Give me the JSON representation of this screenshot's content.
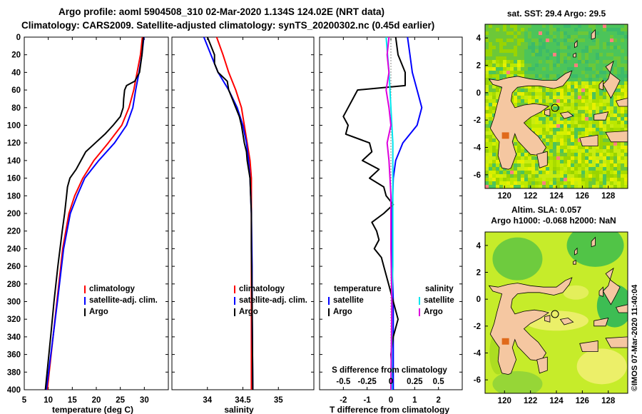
{
  "header": {
    "line1": "Argo profile: aoml 5904508_310 02-Mar-2020 1.134S 124.02E (NRT data)",
    "line2": "Climatology: CARS2009. Satellite-adjusted climatology: synTS_20200302.nc (0.45d earlier)"
  },
  "colors": {
    "climatology": "#ff0000",
    "satellite": "#0000ff",
    "argo": "#000000",
    "sal_satellite": "#00e5ee",
    "sal_argo": "#dd00dd",
    "land": "#f5c7a1"
  },
  "chart_data": [
    {
      "type": "line",
      "name": "temperature",
      "xlabel": "temperature (deg C)",
      "xlim": [
        5,
        35
      ],
      "ylim": [
        400,
        0
      ],
      "xticks": [
        "5",
        "10",
        "15",
        "20",
        "25",
        "30"
      ],
      "yticks": [
        "0",
        "20",
        "40",
        "60",
        "80",
        "100",
        "120",
        "140",
        "160",
        "180",
        "200",
        "220",
        "240",
        "260",
        "280",
        "300",
        "320",
        "340",
        "360",
        "380",
        "400"
      ],
      "legend": [
        "climatology",
        "satellite-adj. clim.",
        "Argo"
      ],
      "series": [
        {
          "name": "climatology",
          "depth": [
            0,
            20,
            40,
            60,
            80,
            100,
            120,
            140,
            160,
            180,
            200,
            240,
            300,
            340,
            400
          ],
          "values": [
            29.6,
            29.2,
            28.5,
            27.8,
            26.8,
            25.3,
            22.5,
            19.5,
            17.2,
            15.5,
            14.3,
            13,
            11.8,
            11,
            9.8
          ]
        },
        {
          "name": "satellite-adj. clim.",
          "depth": [
            0,
            20,
            40,
            60,
            80,
            100,
            120,
            140,
            160,
            180,
            200,
            240,
            300,
            340,
            400
          ],
          "values": [
            29.9,
            29.5,
            28.9,
            28.2,
            27.6,
            26.3,
            23.8,
            20.5,
            17.6,
            16,
            14.6,
            13.2,
            11.9,
            11,
            9.6
          ]
        },
        {
          "name": "Argo",
          "depth": [
            0,
            20,
            40,
            50,
            55,
            60,
            70,
            80,
            90,
            100,
            110,
            120,
            130,
            140,
            150,
            160,
            170,
            180,
            200,
            220,
            260,
            300,
            340,
            400
          ],
          "values": [
            29.8,
            29.5,
            29.0,
            28.0,
            26.3,
            25.9,
            25.7,
            25.6,
            25,
            23.5,
            21.8,
            19.8,
            17.8,
            16.8,
            15.8,
            14.5,
            14.0,
            13.8,
            13.4,
            12.9,
            12.0,
            11.2,
            10.5,
            9.4
          ]
        }
      ]
    },
    {
      "type": "line",
      "name": "salinity",
      "xlabel": "salinity",
      "xlim": [
        33.5,
        35.5
      ],
      "ylim": [
        400,
        0
      ],
      "xticks": [
        "34",
        "34.5",
        "35"
      ],
      "legend": [
        "climatology",
        "satellite-adj. clim.",
        "Argo"
      ],
      "series": [
        {
          "name": "climatology",
          "depth": [
            0,
            20,
            40,
            60,
            80,
            100,
            120,
            140,
            160,
            200,
            260,
            300,
            400
          ],
          "values": [
            34.13,
            34.22,
            34.3,
            34.4,
            34.48,
            34.52,
            34.56,
            34.6,
            34.62,
            34.62,
            34.62,
            34.62,
            34.62
          ]
        },
        {
          "name": "satellite-adj. clim.",
          "depth": [
            0,
            20,
            40,
            60,
            80,
            100,
            120,
            140,
            160,
            200,
            260,
            300,
            400
          ],
          "values": [
            33.95,
            34.05,
            34.15,
            34.3,
            34.42,
            34.5,
            34.55,
            34.58,
            34.6,
            34.62,
            34.63,
            34.63,
            34.64
          ]
        },
        {
          "name": "Argo",
          "depth": [
            0,
            10,
            20,
            30,
            40,
            50,
            60,
            70,
            80,
            90,
            100,
            110,
            120,
            130,
            140,
            150,
            160,
            180,
            200,
            240,
            300,
            400
          ],
          "values": [
            34.0,
            34.05,
            34.1,
            34.1,
            34.15,
            34.28,
            34.3,
            34.35,
            34.4,
            34.45,
            34.48,
            34.5,
            34.52,
            34.55,
            34.56,
            34.58,
            34.6,
            34.61,
            34.62,
            34.62,
            34.63,
            34.64
          ]
        }
      ]
    },
    {
      "type": "line",
      "name": "difference",
      "xlabel": "T difference from climatology",
      "xlim_T": [
        -3,
        3
      ],
      "ylim": [
        400,
        0
      ],
      "xticks_T": [
        "-2",
        "-1",
        "0",
        "1",
        "2"
      ],
      "s_axis_title": "S difference from climatology",
      "xticks_S": [
        "-0.5",
        "-0.25",
        "0",
        "0.25",
        "0.5"
      ],
      "legend_titles": [
        "temperature",
        "salinity"
      ],
      "legend_T": [
        "satellite",
        "Argo"
      ],
      "legend_S": [
        "satellite",
        "Argo"
      ],
      "series": [
        {
          "name": "T satellite",
          "depth": [
            0,
            20,
            40,
            60,
            80,
            100,
            120,
            140,
            160,
            200,
            260,
            300,
            340,
            400
          ],
          "values": [
            0.7,
            0.8,
            0.9,
            1.1,
            1.3,
            1.1,
            0.5,
            0.2,
            0.1,
            0.05,
            0.05,
            0.1,
            0.1,
            0.1
          ]
        },
        {
          "name": "T Argo",
          "depth": [
            0,
            20,
            40,
            55,
            60,
            70,
            80,
            90,
            100,
            110,
            120,
            130,
            140,
            150,
            160,
            170,
            180,
            190,
            200,
            210,
            220,
            230,
            240,
            250,
            260,
            280,
            300,
            320,
            340,
            360,
            380,
            400
          ],
          "values": [
            0.2,
            0.3,
            0.6,
            0.6,
            -1.4,
            -1.6,
            -1.8,
            -2.0,
            -1.8,
            -1.9,
            -0.9,
            -0.8,
            -1.2,
            -0.5,
            -0.9,
            -0.3,
            -0.2,
            0.1,
            -0.3,
            -0.8,
            -0.6,
            -0.5,
            -0.7,
            -0.4,
            -0.3,
            -0.1,
            0.1,
            0.3,
            0.1,
            0,
            0.05,
            0
          ]
        },
        {
          "name": "S satellite",
          "depth": [
            0,
            40,
            80,
            120,
            160,
            200,
            260,
            300,
            400
          ],
          "values": [
            -0.05,
            -0.02,
            0.0,
            0.02,
            0.02,
            0.02,
            0.02,
            0.01,
            0.01
          ]
        },
        {
          "name": "S Argo",
          "depth": [
            0,
            20,
            40,
            60,
            80,
            100,
            120,
            140,
            160,
            180,
            200,
            240,
            300,
            400
          ],
          "values": [
            -0.02,
            -0.04,
            -0.02,
            -0.05,
            -0.02,
            0.0,
            -0.04,
            -0.02,
            -0.01,
            0.0,
            0.0,
            0.0,
            0.01,
            0.0
          ]
        }
      ]
    },
    {
      "type": "heatmap",
      "name": "sst-map",
      "title": "sat. SST: 29.4 Argo: 29.5",
      "xticks": [
        "120",
        "122",
        "124",
        "126",
        "128"
      ],
      "yticks": [
        "4",
        "2",
        "0",
        "-2",
        "-4",
        "-6"
      ],
      "xlim": [
        118.5,
        129.5
      ],
      "ylim": [
        -7,
        5
      ]
    },
    {
      "type": "heatmap",
      "name": "sla-map",
      "title1": "Altim. SLA: 0.057",
      "title2": "Argo h1000: -0.068 h2000: NaN",
      "xticks": [
        "120",
        "122",
        "124",
        "126",
        "128"
      ],
      "yticks": [
        "4",
        "2",
        "0",
        "-2",
        "-4",
        "-6"
      ],
      "xlim": [
        118.5,
        129.5
      ],
      "ylim": [
        -7,
        5
      ]
    }
  ],
  "footer": {
    "credit": "©IMOS 07-Mar-2020 11:40:04"
  }
}
